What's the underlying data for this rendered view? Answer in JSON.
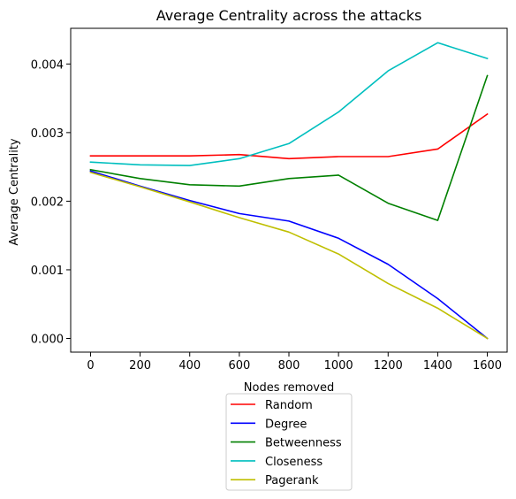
{
  "chart_data": {
    "type": "line",
    "title": "Average Centrality across the attacks",
    "xlabel": "Nodes removed",
    "ylabel": "Average Centrality",
    "x": [
      0,
      200,
      400,
      600,
      800,
      1000,
      1200,
      1400,
      1600
    ],
    "xlim": [
      -80,
      1680
    ],
    "ylim": [
      -0.0002,
      0.00452
    ],
    "xticks": [
      0,
      200,
      400,
      600,
      800,
      1000,
      1200,
      1400,
      1600
    ],
    "xtick_labels": [
      "0",
      "200",
      "400",
      "600",
      "800",
      "1000",
      "1200",
      "1400",
      "1600"
    ],
    "yticks": [
      0,
      0.001,
      0.002,
      0.003,
      0.004
    ],
    "ytick_labels": [
      "0.000",
      "0.001",
      "0.002",
      "0.003",
      "0.004"
    ],
    "grid": false,
    "legend_position": "below-center",
    "series": [
      {
        "name": "Random",
        "color": "#ff0000",
        "values": [
          0.00266,
          0.00266,
          0.00266,
          0.00268,
          0.00262,
          0.00265,
          0.00265,
          0.00276,
          0.00327
        ]
      },
      {
        "name": "Degree",
        "color": "#0000ff",
        "values": [
          0.00244,
          0.00222,
          0.00201,
          0.00182,
          0.00171,
          0.00146,
          0.00108,
          0.00058,
          0.0
        ]
      },
      {
        "name": "Betweenness",
        "color": "#008000",
        "values": [
          0.00246,
          0.00233,
          0.00224,
          0.00222,
          0.00233,
          0.00238,
          0.00197,
          0.00172,
          0.00383
        ]
      },
      {
        "name": "Closeness",
        "color": "#00bfbf",
        "values": [
          0.00257,
          0.00253,
          0.00252,
          0.00262,
          0.00284,
          0.0033,
          0.0039,
          0.00431,
          0.00408
        ]
      },
      {
        "name": "Pagerank",
        "color": "#bfbf00",
        "values": [
          0.00242,
          0.00221,
          0.00199,
          0.00176,
          0.00155,
          0.00123,
          0.0008,
          0.00044,
          0.0
        ]
      }
    ]
  }
}
